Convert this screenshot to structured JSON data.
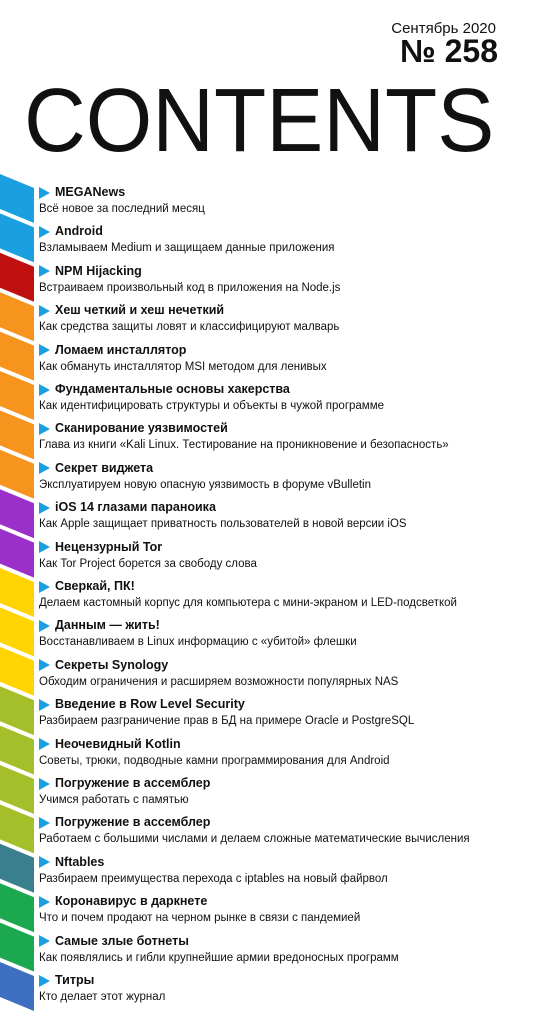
{
  "header": {
    "date": "Сентябрь 2020",
    "issue": "№ 258",
    "title": "CONTENTS"
  },
  "colors": {
    "blue": "#1aa0e0",
    "red": "#c00f0f",
    "orange": "#f7941d",
    "purple": "#9b2fc9",
    "yellow": "#ffd400",
    "olive": "#a5bf2a",
    "teal": "#3a7f8e",
    "green": "#1ba84f",
    "navy": "#3e6fc0"
  },
  "items": [
    {
      "title": "MEGANews",
      "desc": "Всё новое за последний месяц",
      "color": "blue"
    },
    {
      "title": "Android",
      "desc": "Взламываем Medium и защищаем данные приложения",
      "color": "blue"
    },
    {
      "title": "NPM Hijacking",
      "desc": "Встраиваем произвольный код в приложения на Node.js",
      "color": "red"
    },
    {
      "title": "Хеш четкий и хеш нечеткий",
      "desc": "Как средства защиты ловят и классифицируют малварь",
      "color": "orange"
    },
    {
      "title": "Ломаем инсталлятор",
      "desc": "Как обмануть инсталлятор MSI методом для ленивых",
      "color": "orange"
    },
    {
      "title": "Фундаментальные основы хакерства",
      "desc": "Как идентифицировать структуры и объекты в чужой программе",
      "color": "orange"
    },
    {
      "title": "Сканирование уязвимостей",
      "desc": "Глава из книги «Kali Linux. Тестирование на проникновение и безопасность»",
      "color": "orange"
    },
    {
      "title": "Секрет виджета",
      "desc": "Эксплуатируем новую опасную уязвимость в форуме vBulletin",
      "color": "orange"
    },
    {
      "title": "iOS 14 глазами параноика",
      "desc": "Как Apple защищает приватность пользователей в новой версии iOS",
      "color": "purple"
    },
    {
      "title": "Нецензурный Tor",
      "desc": "Как Tor Project борется за свободу слова",
      "color": "purple"
    },
    {
      "title": "Сверкай, ПК!",
      "desc": "Делаем кастомный корпус для компьютера с мини-экраном и LED-подсветкой",
      "color": "yellow"
    },
    {
      "title": "Данным — жить!",
      "desc": "Восстанавливаем в Linux информацию с «убитой» флешки",
      "color": "yellow"
    },
    {
      "title": "Секреты Synology",
      "desc": "Обходим ограничения и расширяем возможности популярных NAS",
      "color": "yellow"
    },
    {
      "title": "Введение в Row Level Security",
      "desc": "Разбираем разграничение прав в БД на примере Oracle и PostgreSQL",
      "color": "olive"
    },
    {
      "title": "Неочевидный Kotlin",
      "desc": "Советы, трюки, подводные камни программирования для Android",
      "color": "olive"
    },
    {
      "title": "Погружение в ассемблер",
      "desc": "Учимся работать с памятью",
      "color": "olive"
    },
    {
      "title": "Погружение в ассемблер",
      "desc": "Работаем с большими числами и делаем сложные математические вычисления",
      "color": "olive"
    },
    {
      "title": "Nftables",
      "desc": "Разбираем преимущества перехода с iptables на новый файрвол",
      "color": "teal"
    },
    {
      "title": "Коронавирус в даркнете",
      "desc": "Что и почем продают на черном рынке в связи с пандемией",
      "color": "green"
    },
    {
      "title": "Самые злые ботнеты",
      "desc": "Как появлялись и гибли крупнейшие армии вредоносных программ",
      "color": "green"
    },
    {
      "title": "Титры",
      "desc": "Кто делает этот журнал",
      "color": "navy"
    }
  ]
}
